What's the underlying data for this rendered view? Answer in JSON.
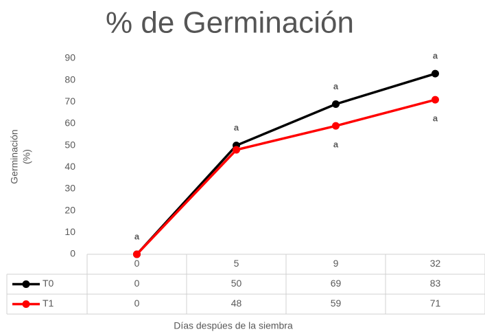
{
  "chart_data": {
    "type": "line",
    "title": "% de Germinación",
    "y_label": [
      "Germinación",
      "(%)"
    ],
    "x_label": "Días despúes de la siembra",
    "categories": [
      "0",
      "5",
      "9",
      "32"
    ],
    "series": [
      {
        "name": "T0",
        "color": "#000000",
        "values": [
          0,
          50,
          69,
          83
        ],
        "letters": [
          "a",
          "a",
          "a",
          "a"
        ]
      },
      {
        "name": "T1",
        "color": "#ff0000",
        "values": [
          0,
          48,
          59,
          71
        ],
        "letters": [
          null,
          null,
          "a",
          "a"
        ]
      }
    ],
    "ylim": [
      0,
      90
    ],
    "yticks": [
      0,
      10,
      20,
      30,
      40,
      50,
      60,
      70,
      80,
      90
    ],
    "grid": false
  }
}
